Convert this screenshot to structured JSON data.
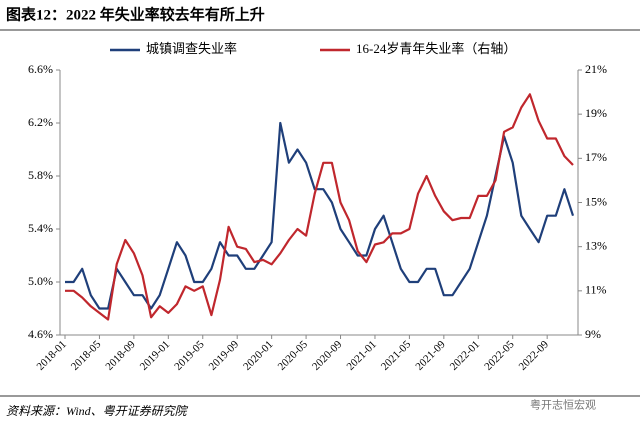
{
  "chart_data": {
    "type": "line",
    "title": "图表12：2022 年失业率较去年有所上升",
    "source": "资料来源：Wind、粤开证券研究院",
    "watermark": "粤开志恒宏观",
    "categories": [
      "2018-01",
      null,
      null,
      null,
      "2018-05",
      null,
      null,
      null,
      "2018-09",
      null,
      null,
      null,
      "2019-01",
      null,
      null,
      null,
      "2019-05",
      null,
      null,
      null,
      "2019-09",
      null,
      null,
      null,
      "2020-01",
      null,
      null,
      null,
      "2020-05",
      null,
      null,
      null,
      "2020-09",
      null,
      null,
      null,
      "2021-01",
      null,
      null,
      null,
      "2021-05",
      null,
      null,
      null,
      "2021-09",
      null,
      null,
      null,
      "2022-01",
      null,
      null,
      null,
      "2022-05",
      null,
      null,
      null,
      "2022-09",
      null,
      null,
      null
    ],
    "series": [
      {
        "name": "城镇调查失业率",
        "color": "#1f3f7a",
        "axis": "y",
        "values": [
          5.0,
          5.0,
          5.1,
          4.9,
          4.8,
          4.8,
          5.1,
          5.0,
          4.9,
          4.9,
          4.8,
          4.9,
          5.1,
          5.3,
          5.2,
          5.0,
          5.0,
          5.1,
          5.3,
          5.2,
          5.2,
          5.1,
          5.1,
          5.2,
          5.3,
          6.2,
          5.9,
          6.0,
          5.9,
          5.7,
          5.7,
          5.6,
          5.4,
          5.3,
          5.2,
          5.2,
          5.4,
          5.5,
          5.3,
          5.1,
          5.0,
          5.0,
          5.1,
          5.1,
          4.9,
          4.9,
          5.0,
          5.1,
          5.3,
          5.5,
          5.8,
          6.1,
          5.9,
          5.5,
          5.4,
          5.3,
          5.5,
          5.5,
          5.7,
          5.5
        ]
      },
      {
        "name": "16-24岁青年失业率（右轴）",
        "color": "#c0272d",
        "axis": "y2",
        "values": [
          11.0,
          11.0,
          10.7,
          10.3,
          10.0,
          9.7,
          12.2,
          13.3,
          12.7,
          11.7,
          9.8,
          10.3,
          10.0,
          10.4,
          11.2,
          11.0,
          11.2,
          9.9,
          11.5,
          13.9,
          13.0,
          12.9,
          12.3,
          12.4,
          12.2,
          12.7,
          13.3,
          13.8,
          13.5,
          15.4,
          16.8,
          16.8,
          15.0,
          14.2,
          12.8,
          12.3,
          13.1,
          13.2,
          13.6,
          13.6,
          13.8,
          15.4,
          16.2,
          15.3,
          14.6,
          14.2,
          14.3,
          14.3,
          15.3,
          15.3,
          16.0,
          18.2,
          18.4,
          19.3,
          19.9,
          18.7,
          17.9,
          17.9,
          17.1,
          16.7
        ]
      }
    ],
    "ylim": [
      4.6,
      6.6
    ],
    "yticks": [
      {
        "value": 4.6,
        "label": "4.6%"
      },
      {
        "value": 5.0,
        "label": "5.0%"
      },
      {
        "value": 5.4,
        "label": "5.4%"
      },
      {
        "value": 5.8,
        "label": "5.8%"
      },
      {
        "value": 6.2,
        "label": "6.2%"
      },
      {
        "value": 6.6,
        "label": "6.6%"
      }
    ],
    "y2lim": [
      9,
      21
    ],
    "y2ticks": [
      {
        "value": 9,
        "label": "9%"
      },
      {
        "value": 11,
        "label": "11%"
      },
      {
        "value": 13,
        "label": "13%"
      },
      {
        "value": 15,
        "label": "15%"
      },
      {
        "value": 17,
        "label": "17%"
      },
      {
        "value": 19,
        "label": "19%"
      },
      {
        "value": 21,
        "label": "21%"
      }
    ],
    "grid": false,
    "legend": "top"
  }
}
